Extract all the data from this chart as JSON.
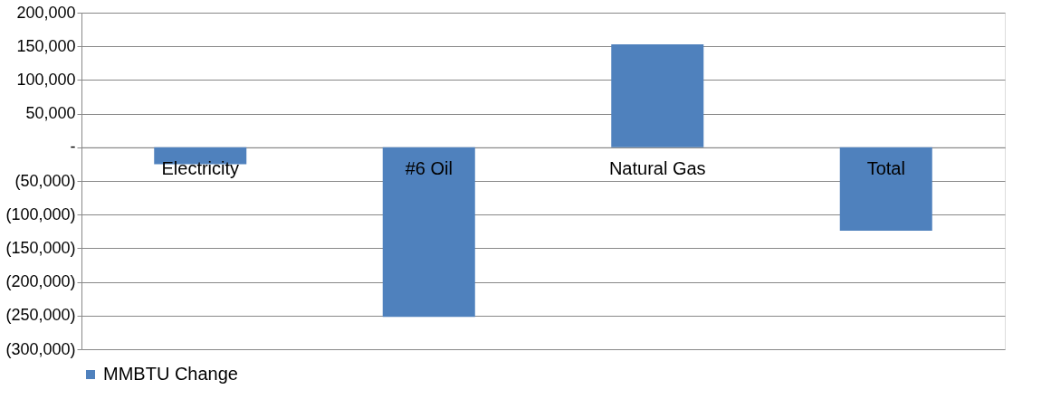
{
  "chart_data": {
    "type": "bar",
    "categories": [
      "Electricity",
      "#6 Oil",
      "Natural Gas",
      "Total"
    ],
    "series": [
      {
        "name": "MMBTU Change",
        "color": "#4f81bd",
        "values": [
          -25000,
          -252000,
          153000,
          -124000
        ]
      }
    ],
    "ylim": [
      -300000,
      200000
    ],
    "yticks": [
      {
        "value": -300000,
        "label": "(300,000)"
      },
      {
        "value": -250000,
        "label": "(250,000)"
      },
      {
        "value": -200000,
        "label": "(200,000)"
      },
      {
        "value": -150000,
        "label": "(150,000)"
      },
      {
        "value": -100000,
        "label": "(100,000)"
      },
      {
        "value": -50000,
        "label": "(50,000)"
      },
      {
        "value": 0,
        "label": "-"
      },
      {
        "value": 50000,
        "label": "50,000"
      },
      {
        "value": 100000,
        "label": "100,000"
      },
      {
        "value": 150000,
        "label": "150,000"
      },
      {
        "value": 200000,
        "label": "200,000"
      }
    ],
    "grid": "y",
    "legend": "bottom"
  }
}
